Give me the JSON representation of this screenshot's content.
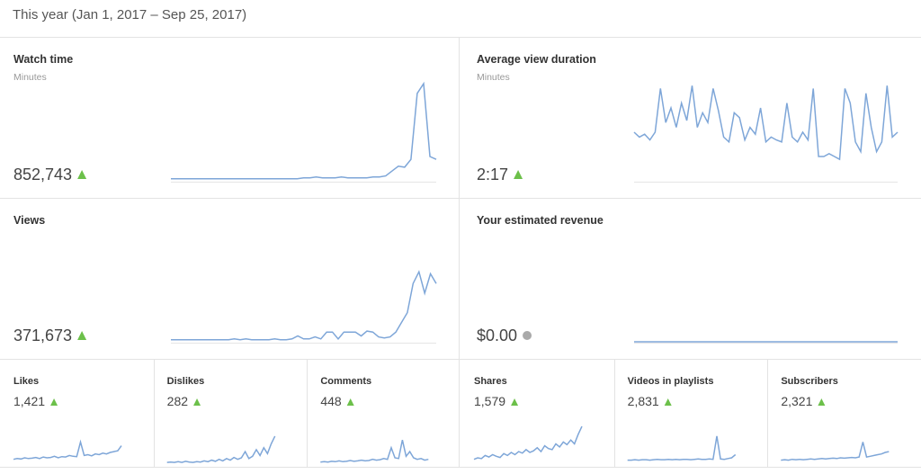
{
  "header": {
    "title": "This year (Jan 1, 2017 – Sep 25, 2017)"
  },
  "sparkline_ylim": [
    0,
    100
  ],
  "big_cards": [
    {
      "title": "Watch time",
      "subtitle": "Minutes",
      "value": "852,743",
      "trend": "up",
      "sparkline": [
        2,
        2,
        2,
        2,
        2,
        2,
        2,
        2,
        2,
        2,
        2,
        2,
        2,
        2,
        2,
        2,
        2,
        2,
        2,
        2,
        2,
        3,
        3,
        4,
        3,
        3,
        3,
        4,
        3,
        3,
        3,
        3,
        4,
        4,
        5,
        10,
        15,
        14,
        22,
        90,
        100,
        25,
        22
      ]
    },
    {
      "title": "Average view duration",
      "subtitle": "Minutes",
      "value": "2:17",
      "trend": "up",
      "sparkline": [
        50,
        45,
        48,
        42,
        50,
        95,
        60,
        75,
        55,
        80,
        62,
        98,
        55,
        70,
        60,
        95,
        72,
        45,
        40,
        70,
        65,
        42,
        55,
        48,
        75,
        40,
        45,
        42,
        40,
        80,
        45,
        40,
        50,
        42,
        95,
        25,
        25,
        28,
        25,
        22,
        95,
        80,
        40,
        30,
        90,
        55,
        30,
        40,
        98,
        45,
        50
      ]
    },
    {
      "title": "Views",
      "value": "371,673",
      "trend": "up",
      "sparkline": [
        2,
        2,
        2,
        2,
        2,
        2,
        2,
        2,
        2,
        2,
        2,
        3,
        2,
        3,
        2,
        2,
        2,
        2,
        3,
        2,
        2,
        3,
        6,
        3,
        3,
        5,
        3,
        10,
        10,
        3,
        10,
        10,
        10,
        6,
        11,
        10,
        5,
        4,
        5,
        10,
        20,
        30,
        60,
        72,
        50,
        70,
        60
      ]
    },
    {
      "title": "Your estimated revenue",
      "value": "$0.00",
      "trend": "flat",
      "sparkline": [
        0,
        0,
        0,
        0,
        0,
        0,
        0,
        0,
        0,
        0,
        0,
        0,
        0,
        0,
        0,
        0,
        0,
        0,
        0,
        0
      ]
    }
  ],
  "small_cards": [
    {
      "title": "Likes",
      "value": "1,421",
      "trend": "up",
      "sparkline": [
        10,
        12,
        11,
        14,
        12,
        13,
        15,
        12,
        16,
        14,
        15,
        18,
        14,
        17,
        16,
        20,
        18,
        17,
        55,
        20,
        22,
        19,
        24,
        22,
        26,
        24,
        28,
        30,
        32,
        45
      ]
    },
    {
      "title": "Dislikes",
      "value": "282",
      "trend": "up",
      "sparkline": [
        2,
        3,
        2,
        4,
        2,
        5,
        3,
        2,
        4,
        3,
        6,
        4,
        8,
        5,
        10,
        6,
        12,
        8,
        15,
        10,
        14,
        30,
        12,
        18,
        35,
        20,
        40,
        25,
        50,
        70
      ]
    },
    {
      "title": "Comments",
      "value": "448",
      "trend": "up",
      "sparkline": [
        3,
        4,
        3,
        5,
        4,
        6,
        4,
        5,
        7,
        5,
        6,
        8,
        6,
        7,
        10,
        8,
        9,
        12,
        10,
        40,
        14,
        12,
        60,
        18,
        30,
        14,
        10,
        12,
        8,
        10
      ]
    },
    {
      "title": "Shares",
      "value": "1,579",
      "trend": "up",
      "sparkline": [
        10,
        14,
        12,
        20,
        16,
        22,
        18,
        15,
        25,
        20,
        28,
        22,
        30,
        26,
        35,
        28,
        32,
        40,
        30,
        45,
        38,
        35,
        50,
        42,
        55,
        48,
        60,
        50,
        75,
        95
      ]
    },
    {
      "title": "Videos in playlists",
      "value": "2,831",
      "trend": "up",
      "sparkline": [
        8,
        8,
        9,
        8,
        9,
        9,
        8,
        9,
        10,
        9,
        9,
        10,
        9,
        10,
        9,
        10,
        10,
        9,
        10,
        11,
        10,
        10,
        11,
        10,
        70,
        11,
        10,
        12,
        14,
        22
      ]
    },
    {
      "title": "Subscribers",
      "value": "2,321",
      "trend": "up",
      "sparkline": [
        8,
        9,
        8,
        10,
        9,
        10,
        9,
        10,
        11,
        10,
        11,
        12,
        11,
        12,
        13,
        12,
        14,
        13,
        14,
        15,
        14,
        16,
        55,
        16,
        18,
        20,
        22,
        24,
        28,
        30
      ]
    }
  ]
}
